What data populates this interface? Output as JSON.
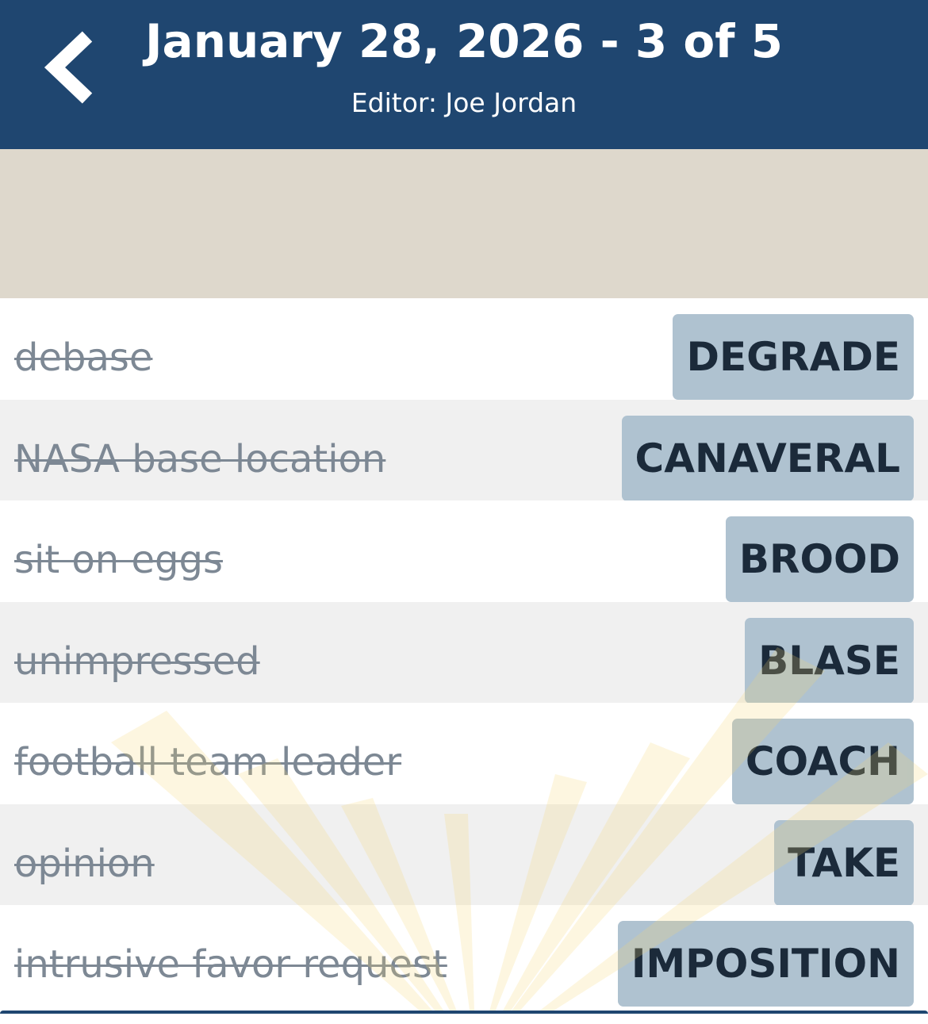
{
  "header": {
    "title": "January 28, 2026 - 3 of 5",
    "subtitle": "Editor: Joe Jordan",
    "back_icon": "chevron-left-icon",
    "background_color": "#1f4670"
  },
  "clues": [
    {
      "clue": "debase",
      "answer": "DEGRADE"
    },
    {
      "clue": "NASA base location",
      "answer": "CANAVERAL"
    },
    {
      "clue": "sit on eggs",
      "answer": "BROOD"
    },
    {
      "clue": "unimpressed",
      "answer": "BLASE"
    },
    {
      "clue": "football team leader",
      "answer": "COACH"
    },
    {
      "clue": "opinion",
      "answer": "TAKE"
    },
    {
      "clue": "intrusive favor request",
      "answer": "IMPOSITION"
    }
  ],
  "colors": {
    "answer_tile": "#afc2d0",
    "banner": "#ded8cc",
    "ray": "#fbe6a6"
  }
}
